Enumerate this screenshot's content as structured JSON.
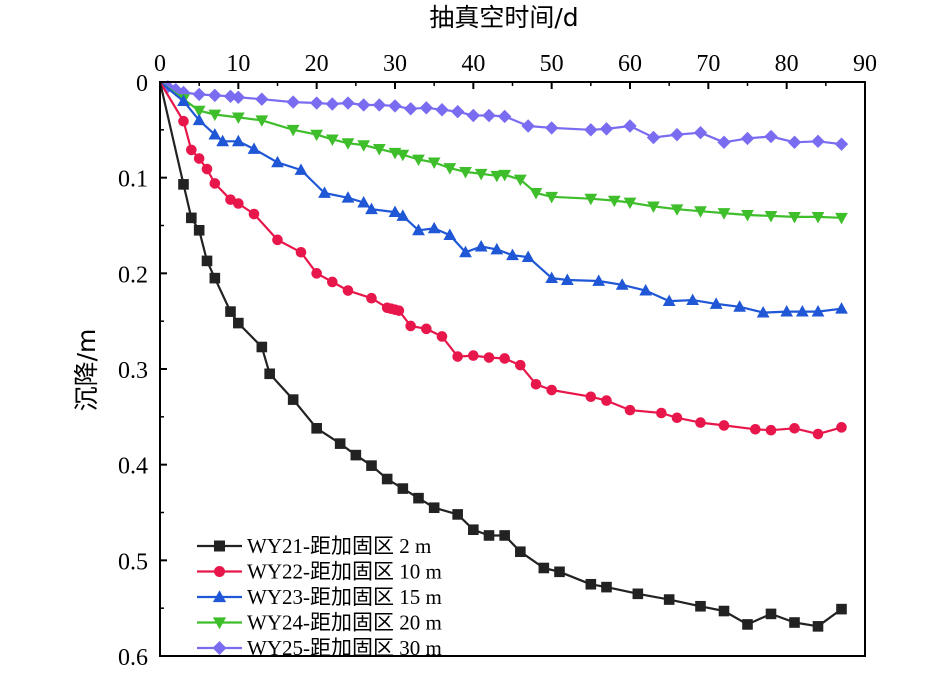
{
  "chart_data": {
    "type": "line",
    "xlabel": "抽真空时间/d",
    "ylabel": "沉降/m",
    "xlim": [
      0,
      90
    ],
    "ylim": [
      0,
      0.6
    ],
    "y_inverted": true,
    "x_axis_position": "top",
    "xticks": [
      "0",
      "10",
      "20",
      "30",
      "40",
      "50",
      "60",
      "70",
      "80",
      "90"
    ],
    "yticks": [
      "0",
      "0.1",
      "0.2",
      "0.3",
      "0.4",
      "0.5",
      "0.6"
    ],
    "legend_position": "bottom-left",
    "grid": false,
    "series": [
      {
        "name": "WY21-距加固区 2 m",
        "color": "#222222",
        "marker": "square",
        "x": [
          0,
          3,
          4,
          5,
          6,
          7,
          9,
          10,
          13,
          14,
          17,
          20,
          23,
          25,
          27,
          29,
          31,
          33,
          35,
          38,
          40,
          42,
          44,
          46,
          49,
          51,
          55,
          57,
          61,
          65,
          69,
          72,
          75,
          78,
          81,
          84,
          87
        ],
        "y": [
          0,
          0.107,
          0.142,
          0.155,
          0.187,
          0.205,
          0.24,
          0.252,
          0.277,
          0.305,
          0.332,
          0.362,
          0.378,
          0.39,
          0.401,
          0.415,
          0.425,
          0.435,
          0.445,
          0.452,
          0.468,
          0.474,
          0.474,
          0.491,
          0.508,
          0.512,
          0.525,
          0.528,
          0.535,
          0.541,
          0.548,
          0.553,
          0.567,
          0.556,
          0.565,
          0.569,
          0.551
        ]
      },
      {
        "name": "WY22-距加固区 10 m",
        "color": "#e8174b",
        "marker": "circle",
        "x": [
          0,
          3,
          4,
          5,
          6,
          7,
          9,
          10,
          12,
          15,
          18,
          20,
          22,
          24,
          27,
          29,
          29.5,
          30,
          30.5,
          32,
          34,
          36,
          38,
          40,
          42,
          44,
          46,
          48,
          50,
          55,
          57,
          60,
          64,
          66,
          69,
          72,
          76,
          78,
          81,
          84,
          87
        ],
        "y": [
          0,
          0.041,
          0.071,
          0.08,
          0.091,
          0.106,
          0.123,
          0.127,
          0.138,
          0.165,
          0.178,
          0.2,
          0.209,
          0.218,
          0.226,
          0.236,
          0.237,
          0.238,
          0.239,
          0.255,
          0.258,
          0.266,
          0.287,
          0.286,
          0.288,
          0.289,
          0.296,
          0.316,
          0.322,
          0.329,
          0.333,
          0.343,
          0.346,
          0.351,
          0.356,
          0.359,
          0.363,
          0.364,
          0.362,
          0.368,
          0.361
        ]
      },
      {
        "name": "WY23-距加固区 15 m",
        "color": "#1f57d6",
        "marker": "triangle-up",
        "x": [
          0,
          3,
          5,
          7,
          8,
          10,
          12,
          15,
          18,
          21,
          24,
          26,
          27,
          30,
          31,
          33,
          35,
          37,
          39,
          41,
          43,
          45,
          47,
          50,
          52,
          56,
          59,
          62,
          65,
          68,
          71,
          74,
          77,
          80,
          82,
          84,
          87
        ],
        "y": [
          0,
          0.02,
          0.04,
          0.055,
          0.062,
          0.062,
          0.07,
          0.084,
          0.092,
          0.116,
          0.121,
          0.126,
          0.133,
          0.136,
          0.14,
          0.155,
          0.153,
          0.16,
          0.178,
          0.172,
          0.175,
          0.181,
          0.183,
          0.205,
          0.207,
          0.208,
          0.212,
          0.218,
          0.229,
          0.228,
          0.232,
          0.235,
          0.241,
          0.24,
          0.24,
          0.24,
          0.237
        ]
      },
      {
        "name": "WY24-距加固区 20 m",
        "color": "#3fbe2b",
        "marker": "triangle-down",
        "x": [
          0,
          3,
          5,
          7,
          10,
          13,
          17,
          20,
          22,
          24,
          26,
          28,
          30,
          31,
          33,
          35,
          37,
          39,
          41,
          43,
          44,
          46,
          48,
          50,
          55,
          58,
          60,
          63,
          66,
          69,
          72,
          75,
          78,
          81,
          84,
          87
        ],
        "y": [
          0,
          0.018,
          0.03,
          0.034,
          0.037,
          0.04,
          0.05,
          0.055,
          0.06,
          0.064,
          0.066,
          0.07,
          0.074,
          0.076,
          0.081,
          0.084,
          0.09,
          0.094,
          0.096,
          0.098,
          0.097,
          0.102,
          0.116,
          0.12,
          0.122,
          0.124,
          0.126,
          0.13,
          0.133,
          0.135,
          0.137,
          0.139,
          0.14,
          0.141,
          0.141,
          0.142
        ]
      },
      {
        "name": "WY25-距加固区 30 m",
        "color": "#7a6cf0",
        "marker": "diamond",
        "x": [
          0,
          1,
          2,
          3,
          5,
          7,
          9,
          10,
          13,
          17,
          20,
          22,
          24,
          26,
          28,
          30,
          32,
          34,
          36,
          38,
          40,
          42,
          44,
          47,
          50,
          55,
          57,
          60,
          63,
          66,
          69,
          72,
          75,
          78,
          81,
          84,
          87
        ],
        "y": [
          0,
          0.005,
          0.008,
          0.011,
          0.013,
          0.014,
          0.015,
          0.016,
          0.018,
          0.021,
          0.022,
          0.023,
          0.022,
          0.024,
          0.024,
          0.025,
          0.028,
          0.027,
          0.029,
          0.031,
          0.035,
          0.035,
          0.036,
          0.046,
          0.048,
          0.05,
          0.049,
          0.046,
          0.058,
          0.055,
          0.053,
          0.063,
          0.059,
          0.057,
          0.063,
          0.062,
          0.065
        ]
      }
    ]
  }
}
